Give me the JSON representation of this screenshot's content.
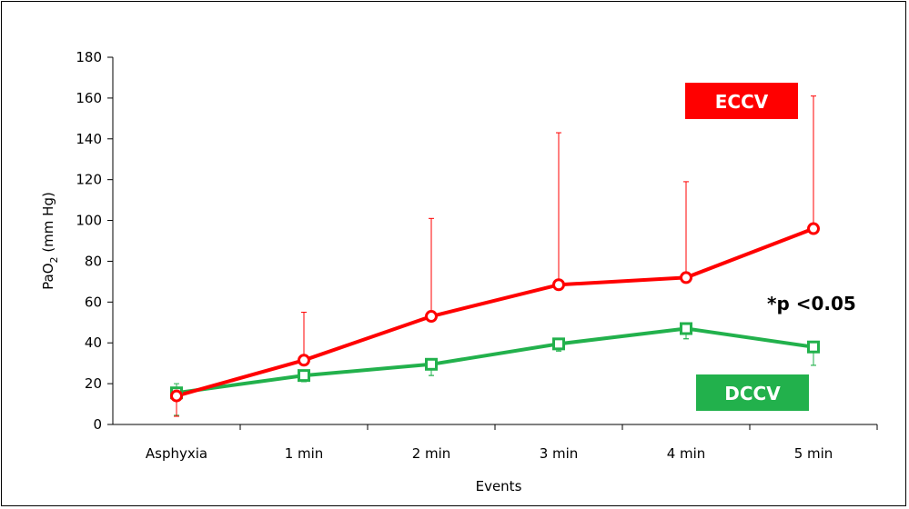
{
  "chart_data": {
    "type": "line",
    "categories": [
      "Asphyxia",
      "1 min",
      "2 min",
      "3 min",
      "4 min",
      "5 min"
    ],
    "series": [
      {
        "name": "ECCV",
        "color": "#ff0000",
        "marker": "circle",
        "values": [
          14,
          31.5,
          53,
          68.5,
          72,
          96
        ],
        "error_plus": [
          4,
          55,
          101,
          143,
          119,
          161
        ]
      },
      {
        "name": "DCCV",
        "color": "#22b14c",
        "marker": "square",
        "values": [
          15.5,
          24,
          29.5,
          39.5,
          47,
          38
        ],
        "error_plus": [
          20,
          21,
          24,
          36,
          42,
          29
        ],
        "error_minus": [
          4.5,
          21,
          24,
          36,
          42,
          29
        ]
      }
    ],
    "ylim": [
      0,
      180
    ],
    "yticks": [
      0,
      20,
      40,
      60,
      80,
      100,
      120,
      140,
      160,
      180
    ],
    "xlabel": "Events",
    "ylabel_main": "PaO",
    "ylabel_sub": "2",
    "ylabel_rest": " (mm Hg)",
    "annotation": "*p <0.05",
    "legend": [
      {
        "label": "ECCV",
        "color": "#ff0000"
      },
      {
        "label": "DCCV",
        "color": "#22b14c"
      }
    ],
    "grid": false
  }
}
